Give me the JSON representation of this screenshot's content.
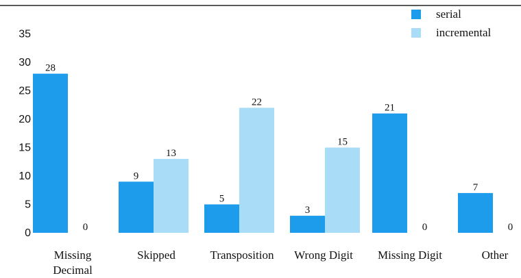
{
  "chart_data": {
    "type": "bar",
    "categories": [
      [
        "Missing",
        "Decimal"
      ],
      [
        "Skipped"
      ],
      [
        "Transposition"
      ],
      [
        "Wrong Digit"
      ],
      [
        "Missing Digit"
      ],
      [
        "Other"
      ]
    ],
    "series": [
      {
        "name": "serial",
        "values": [
          28,
          9,
          5,
          3,
          21,
          7
        ]
      },
      {
        "name": "incremental",
        "values": [
          0,
          13,
          22,
          15,
          0,
          0
        ]
      }
    ],
    "ylim": [
      0,
      35
    ],
    "yticks": [
      "0",
      "5",
      "10",
      "15",
      "20",
      "25",
      "30",
      "35"
    ],
    "grid": false,
    "legend_position": "top-right",
    "colors": {
      "serial": "#1c9cea",
      "incremental": "#a8dcf7"
    }
  }
}
